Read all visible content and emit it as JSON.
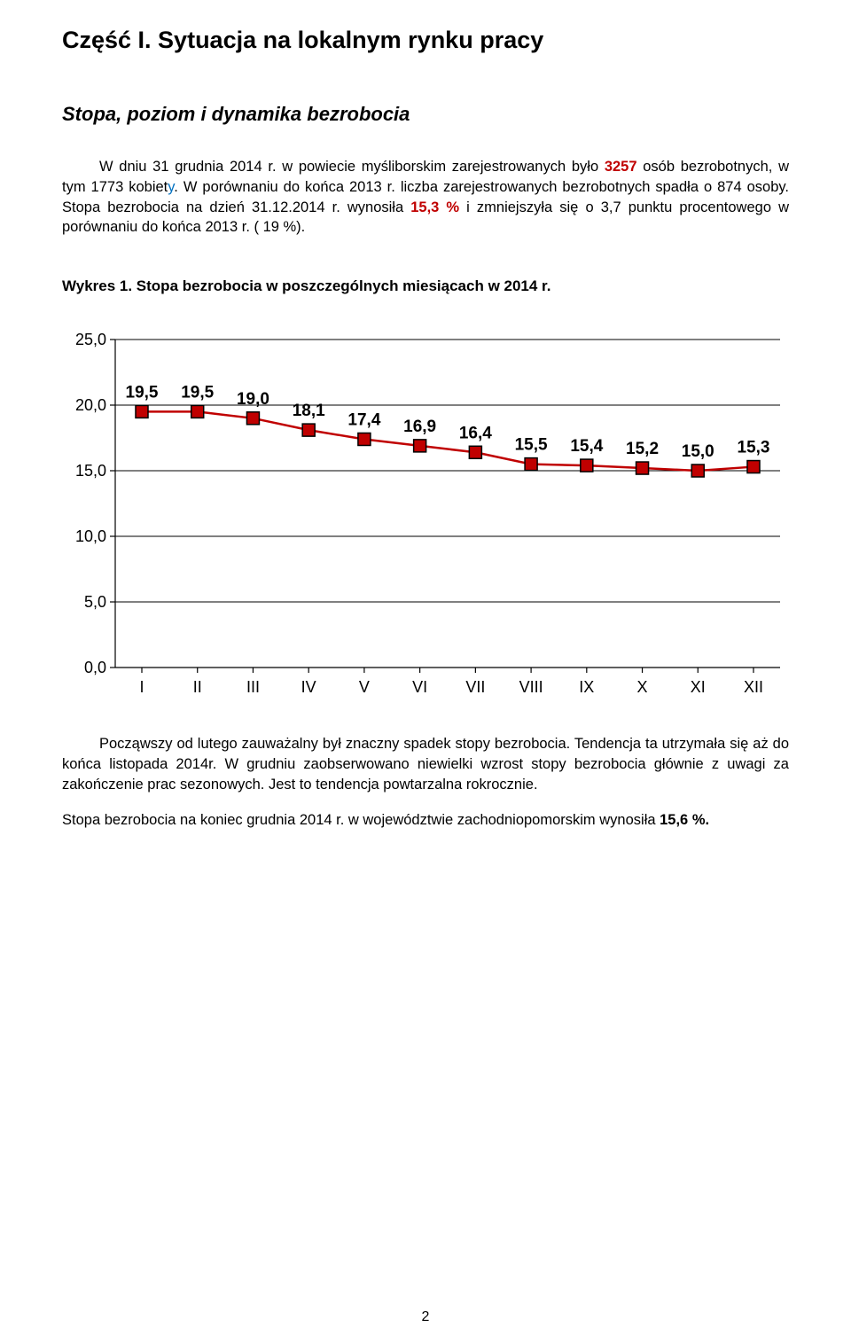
{
  "title": "Część I. Sytuacja na lokalnym rynku pracy",
  "subtitle": "Stopa, poziom i dynamika bezrobocia",
  "para1_a": "W dniu 31 grudnia 2014 r. w powiecie myśliborskim zarejestrowanych było ",
  "para1_b": "3257",
  "para1_c": " osób bezrobotnych, w tym 1773 kobiet",
  "para1_y": "y",
  "para1_d": ". W porównaniu do końca 2013 r. liczba zarejestrowanych bezrobotnych spadła o 874 osoby. Stopa bezrobocia na dzień 31.12.2014 r. wynosiła ",
  "para1_e": "15,3 %",
  "para1_f": " i zmniejszyła się o 3,7 punktu procentowego w porównaniu do końca 2013 r. ( 19 %).",
  "chart_caption": "Wykres 1. Stopa bezrobocia w poszczególnych miesiącach w 2014 r.",
  "chart": {
    "type": "line",
    "categories": [
      "I",
      "II",
      "III",
      "IV",
      "V",
      "VI",
      "VII",
      "VIII",
      "IX",
      "X",
      "XI",
      "XII"
    ],
    "values": [
      19.5,
      19.5,
      19.0,
      18.1,
      17.4,
      16.9,
      16.4,
      15.5,
      15.4,
      15.2,
      15.0,
      15.3
    ],
    "value_labels": [
      "19,5",
      "19,5",
      "19,0",
      "18,1",
      "17,4",
      "16,9",
      "16,4",
      "15,5",
      "15,4",
      "15,2",
      "15,0",
      "15,3"
    ],
    "ylim": [
      0,
      25
    ],
    "ytick_step": 5,
    "ytick_labels": [
      "0,0",
      "5,0",
      "10,0",
      "15,0",
      "20,0",
      "25,0"
    ],
    "marker_fill": "#c00000",
    "marker_stroke": "#000000",
    "marker_stroke_width": 1.5,
    "marker_size": 7,
    "line_color": "#c00000",
    "line_width": 2.5,
    "axis_color": "#000000",
    "axis_width": 1.2,
    "grid_color": "#000000",
    "grid_width": 1.0,
    "background_color": "#ffffff",
    "label_fontsize": 18,
    "data_label_fontsize": 19
  },
  "para2": "Począwszy od lutego zauważalny był znaczny spadek stopy bezrobocia. Tendencja ta utrzymała się aż do końca listopada 2014r. W grudniu zaobserwowano niewielki wzrost stopy bezrobocia głównie z uwagi za zakończenie prac sezonowych. Jest to tendencja powtarzalna rokrocznie.",
  "para3_a": "Stopa bezrobocia na koniec grudnia 2014 r. w województwie zachodniopomorskim wynosiła ",
  "para3_b": "15,6 %.",
  "page_number": "2"
}
